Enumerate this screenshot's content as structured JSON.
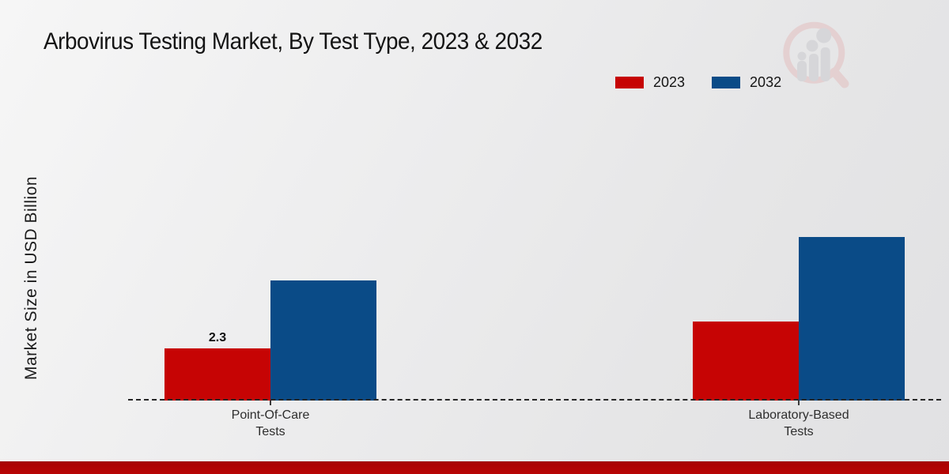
{
  "page": {
    "title": "Arbovirus Testing Market, By Test Type, 2023 & 2032",
    "y_axis_label": "Market Size in USD Billion"
  },
  "legend": {
    "items": [
      {
        "label": "2023",
        "color": "#c60404"
      },
      {
        "label": "2032",
        "color": "#0a4b87"
      }
    ]
  },
  "chart_data": {
    "type": "bar",
    "title": "Arbovirus Testing Market, By Test Type, 2023 & 2032",
    "xlabel": "",
    "ylabel": "Market Size in USD Billion",
    "categories": [
      "Point-Of-Care\nTests",
      "Laboratory-Based\nTests"
    ],
    "series": [
      {
        "name": "2023",
        "color": "#c60404",
        "values": [
          2.3,
          3.5
        ]
      },
      {
        "name": "2032",
        "color": "#0a4b87",
        "values": [
          5.3,
          7.2
        ]
      }
    ],
    "bar_labels": [
      {
        "series_index": 0,
        "category_index": 0,
        "text": "2.3"
      }
    ],
    "ylim": [
      0,
      7.6
    ],
    "grid": false,
    "y_axis_ticks_visible": false,
    "legend_position": "top-right",
    "baseline_style": "dashed"
  },
  "watermark": {
    "name": "magnifier-growth-chart-logo"
  },
  "footer": {
    "bar_color": "#b70404"
  }
}
